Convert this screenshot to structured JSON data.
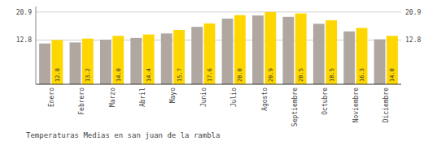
{
  "chart_data": {
    "type": "bar",
    "title": "Temperaturas Medias en san juan de la rambla",
    "categories": [
      "Enero",
      "Febrero",
      "Marzo",
      "Abril",
      "Mayo",
      "Junio",
      "Julio",
      "Agosto",
      "Septiembre",
      "Octubre",
      "Noviembre",
      "Diciembre"
    ],
    "series": [
      {
        "color": "#B0A8A0",
        "values": [
          11.8,
          12.1,
          12.9,
          13.4,
          14.7,
          16.6,
          19.0,
          19.9,
          19.5,
          17.5,
          15.3,
          13.0
        ]
      },
      {
        "color": "#FFD700",
        "data_labels": true,
        "values": [
          12.8,
          13.2,
          14.0,
          14.4,
          15.7,
          17.6,
          20.0,
          20.9,
          20.5,
          18.5,
          16.3,
          14.0
        ],
        "value_labels": [
          "12.8",
          "13.2",
          "14.0",
          "14.4",
          "15.7",
          "17.6",
          "20.0",
          "20.9",
          "20.5",
          "18.5",
          "16.3",
          "14.0"
        ]
      }
    ],
    "ylim": [
      0,
      22.5
    ],
    "yticks": [
      12.8,
      20.9
    ],
    "grid": true
  }
}
